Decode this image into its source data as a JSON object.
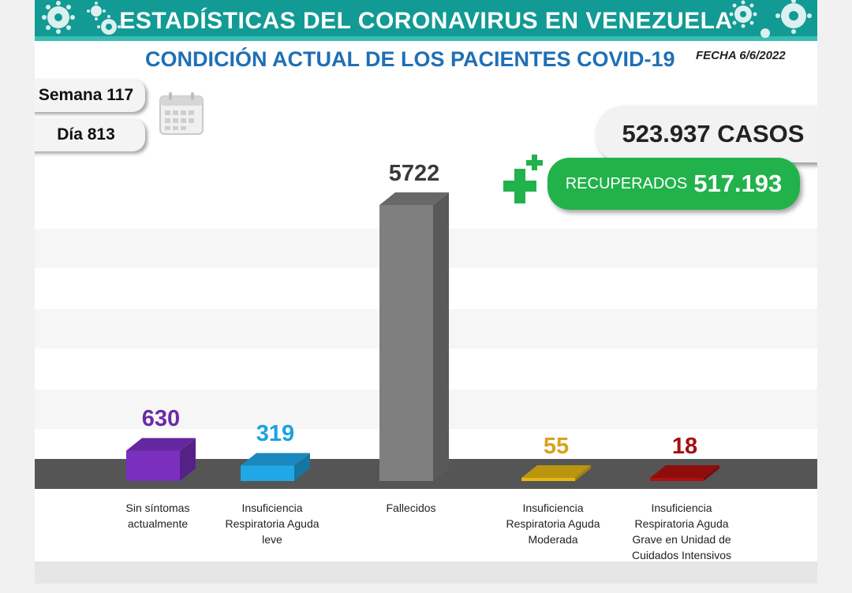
{
  "header": {
    "title": "ESTADÍSTICAS DEL CORONAVIRUS EN VENEZUELA",
    "subtitle": "CONDICIÓN ACTUAL DE LOS PACIENTES COVID-19",
    "fecha": "FECHA 6/6/2022"
  },
  "period": {
    "semana": "Semana 117",
    "dia": "Día 813",
    "icon": "calendar-icon"
  },
  "totals": {
    "casos": "523.937 CASOS",
    "recuperados_label": "RECUPERADOS",
    "recuperados_value": "517.193",
    "icon": "plus-icon"
  },
  "colors": {
    "header": "#129a94",
    "subtitle": "#1f6fb6",
    "recuperados": "#22b24b"
  },
  "chart_data": {
    "type": "bar",
    "title": "CONDICIÓN ACTUAL DE LOS PACIENTES COVID-19",
    "categories": [
      "Sin síntomas\nactualmente",
      "Insuficiencia\nRespiratoria Aguda\nleve",
      "Fallecidos",
      "Insuficiencia\nRespiratoria Aguda\nModerada",
      "Insuficiencia\nRespiratoria Aguda\nGrave en Unidad de\nCuidados Intensivos"
    ],
    "values": [
      630,
      319,
      5722,
      55,
      18
    ],
    "value_labels": [
      "630",
      "319",
      "5722",
      "55",
      "18"
    ],
    "colors": [
      "#7b2fbf",
      "#21a7e6",
      "#7f7f7f",
      "#e3b714",
      "#b01010"
    ],
    "label_colors": [
      "#6b2ba6",
      "#1aa2e0",
      "#3a3a3a",
      "#d9a21b",
      "#a51010"
    ],
    "ylim": [
      0,
      5722
    ],
    "grid": false,
    "legend": "none"
  }
}
